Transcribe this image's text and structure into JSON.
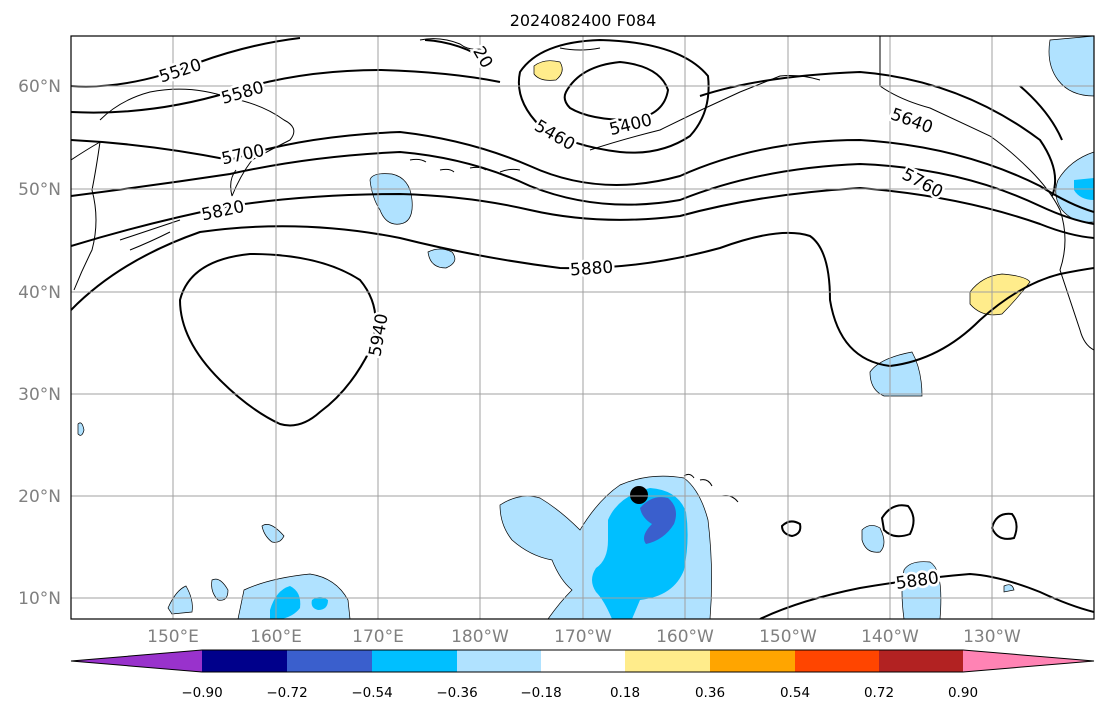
{
  "title": "2024082400 F084",
  "latitude_labels": [
    "60°N",
    "50°N",
    "40°N",
    "30°N",
    "20°N",
    "10°N"
  ],
  "longitude_labels": [
    "150°E",
    "160°E",
    "170°E",
    "180°W",
    "170°W",
    "160°W",
    "150°W",
    "140°W",
    "130°W"
  ],
  "contour_labels": [
    "5520",
    "5580",
    "5700",
    "5820",
    "5940",
    "5460",
    "5400",
    "20",
    "5640",
    "5760",
    "5880",
    "5880"
  ],
  "colorbar": {
    "colors": [
      "#9932cc",
      "#00008b",
      "#3a5fcd",
      "#00bfff",
      "#b0e2ff",
      "#ffffff",
      "#ffec8b",
      "#ffa500",
      "#ff4500",
      "#b22222",
      "#ff83b4"
    ],
    "tick_labels": [
      "−0.90",
      "−0.72",
      "−0.54",
      "−0.36",
      "−0.18",
      "0.18",
      "0.36",
      "0.54",
      "0.72",
      "0.90"
    ]
  },
  "colors": {
    "light_blue": "#b0e2ff",
    "deep_sky_blue": "#00bfff",
    "royal_blue": "#3a5fcd",
    "light_yellow": "#ffec8b"
  }
}
